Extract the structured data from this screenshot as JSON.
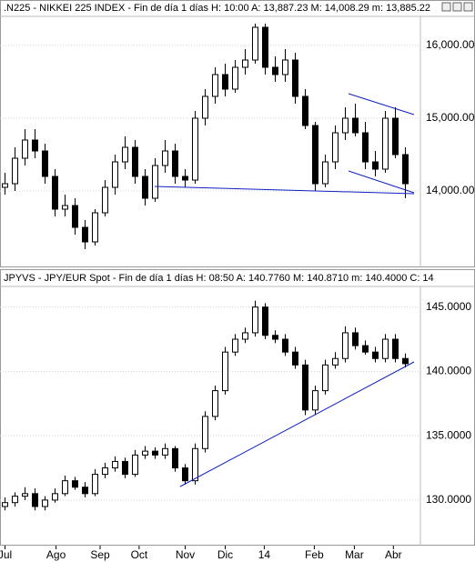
{
  "chart_data": [
    {
      "type": "candlestick",
      "title": ".N225 - NIKKEI 225 INDEX - Fin de día 1 días  H: 10:00  A: 13,887.23  M: 14,008.29  m: 13,885.22",
      "x": [
        0,
        1,
        2,
        3,
        4,
        5,
        6,
        7,
        8,
        9,
        10,
        11,
        12,
        13,
        14,
        15,
        16,
        17,
        18,
        19,
        20,
        21,
        22,
        23,
        24,
        25,
        26,
        27,
        28,
        29,
        30,
        31,
        32,
        33,
        34,
        35,
        36,
        37,
        38,
        39,
        40
      ],
      "open": [
        14050,
        14100,
        14450,
        14700,
        14550,
        14200,
        13750,
        13800,
        13500,
        13300,
        13700,
        14050,
        14400,
        14600,
        14200,
        13900,
        14350,
        14550,
        14200,
        14150,
        15000,
        15300,
        15600,
        15400,
        15700,
        15800,
        16250,
        15700,
        15600,
        15800,
        15300,
        14900,
        14100,
        14400,
        14800,
        15000,
        14800,
        14400,
        14300,
        15000,
        14500
      ],
      "high": [
        14250,
        14600,
        14850,
        14850,
        14650,
        14300,
        13950,
        13900,
        13600,
        13750,
        14150,
        14500,
        14750,
        14700,
        14300,
        14450,
        14700,
        14650,
        14300,
        15100,
        15400,
        15700,
        15750,
        15800,
        15950,
        16300,
        16300,
        15850,
        15950,
        15900,
        15400,
        14950,
        14500,
        14900,
        15150,
        15200,
        14950,
        14550,
        15100,
        15150,
        14600
      ],
      "low": [
        13950,
        14000,
        14350,
        14450,
        14100,
        13650,
        13650,
        13400,
        13200,
        13250,
        13650,
        13950,
        14300,
        14100,
        13800,
        13850,
        14250,
        14100,
        14050,
        14100,
        14900,
        15200,
        15300,
        15350,
        15600,
        15750,
        15600,
        15500,
        15500,
        15200,
        14850,
        14000,
        14050,
        14300,
        14700,
        14750,
        14300,
        14200,
        14250,
        14450,
        13900
      ],
      "close": [
        14100,
        14450,
        14700,
        14550,
        14200,
        13750,
        13800,
        13500,
        13300,
        13700,
        14050,
        14400,
        14600,
        14200,
        13900,
        14350,
        14550,
        14200,
        14150,
        15000,
        15300,
        15600,
        15400,
        15700,
        15800,
        16250,
        15700,
        15600,
        15800,
        15300,
        14900,
        14100,
        14400,
        14800,
        15000,
        14800,
        14400,
        14300,
        15000,
        14500,
        14100
      ],
      "xlim": [
        -0.5,
        41.5
      ],
      "ylim": [
        12975,
        16400
      ],
      "yticks": [
        {
          "value": 14000,
          "label": "14,000.00"
        },
        {
          "value": 15000,
          "label": "15,000.00"
        },
        {
          "value": 16000,
          "label": "16,000.00"
        }
      ],
      "grid": true
    },
    {
      "type": "candlestick",
      "title": "JPYVS - JPY/EUR Spot - Fin de día 1 días  H: 08:50  A: 140.7760  M: 140.8710  m: 140.4000  C: 14",
      "x": [
        0,
        1,
        2,
        3,
        4,
        5,
        6,
        7,
        8,
        9,
        10,
        11,
        12,
        13,
        14,
        15,
        16,
        17,
        18,
        19,
        20,
        21,
        22,
        23,
        24,
        25,
        26,
        27,
        28,
        29,
        30,
        31,
        32,
        33,
        34,
        35,
        36,
        37,
        38,
        39,
        40
      ],
      "open": [
        129.5,
        129.8,
        130.3,
        130.5,
        129.5,
        130.0,
        130.5,
        131.5,
        131.0,
        130.5,
        132.0,
        132.5,
        133.0,
        132.0,
        133.5,
        133.8,
        133.5,
        134.0,
        132.5,
        131.5,
        134.0,
        136.5,
        138.5,
        141.5,
        142.5,
        143.0,
        145.0,
        142.8,
        142.5,
        141.5,
        140.5,
        137.0,
        138.5,
        140.5,
        141.0,
        143.0,
        142.0,
        141.5,
        141.0,
        142.5,
        141.0
      ],
      "high": [
        130.2,
        130.6,
        131.0,
        130.9,
        130.3,
        130.9,
        131.9,
        131.8,
        131.4,
        132.4,
        132.9,
        133.4,
        133.3,
        133.9,
        134.2,
        134.1,
        134.4,
        134.2,
        132.8,
        134.4,
        136.9,
        138.9,
        141.9,
        142.9,
        143.4,
        145.5,
        145.3,
        143.2,
        142.9,
        141.9,
        140.9,
        138.9,
        140.9,
        141.5,
        143.5,
        143.4,
        142.4,
        141.9,
        142.9,
        142.9,
        141.4
      ],
      "low": [
        129.2,
        129.5,
        130.0,
        129.2,
        129.2,
        129.8,
        130.3,
        130.8,
        130.2,
        130.3,
        131.7,
        132.2,
        131.7,
        131.8,
        133.2,
        133.2,
        133.2,
        132.2,
        131.2,
        131.2,
        133.7,
        136.2,
        138.2,
        141.2,
        142.2,
        142.7,
        142.5,
        142.2,
        141.2,
        140.2,
        136.6,
        136.6,
        138.2,
        140.2,
        140.7,
        141.7,
        141.3,
        140.7,
        140.7,
        140.7,
        140.3
      ],
      "close": [
        129.8,
        130.3,
        130.5,
        129.5,
        130.0,
        130.5,
        131.5,
        131.0,
        130.5,
        132.0,
        132.5,
        133.0,
        132.0,
        133.5,
        133.8,
        133.5,
        134.0,
        132.5,
        131.5,
        134.0,
        136.5,
        138.5,
        141.5,
        142.5,
        143.0,
        145.0,
        142.8,
        142.5,
        141.5,
        140.5,
        137.0,
        138.5,
        140.5,
        141.0,
        143.0,
        142.0,
        141.5,
        141.0,
        142.5,
        141.0,
        140.6
      ],
      "xlim": [
        -0.5,
        41.5
      ],
      "ylim": [
        126.6,
        146.6
      ],
      "yticks": [
        {
          "value": 130,
          "label": "130.0000"
        },
        {
          "value": 135,
          "label": "135.0000"
        },
        {
          "value": 140,
          "label": "140.0000"
        },
        {
          "value": 145,
          "label": "145.0000"
        }
      ],
      "xticks": [
        {
          "value": 0,
          "label": "Jul"
        },
        {
          "value": 5.1,
          "label": "Ago"
        },
        {
          "value": 9.5,
          "label": "Sep"
        },
        {
          "value": 13.4,
          "label": "Oct"
        },
        {
          "value": 18.0,
          "label": "Nov"
        },
        {
          "value": 22.0,
          "label": "Dic"
        },
        {
          "value": 25.9,
          "label": "14"
        },
        {
          "value": 30.9,
          "label": "Feb"
        },
        {
          "value": 34.9,
          "label": "Mar"
        },
        {
          "value": 38.8,
          "label": "Abr"
        }
      ],
      "grid": true
    }
  ]
}
